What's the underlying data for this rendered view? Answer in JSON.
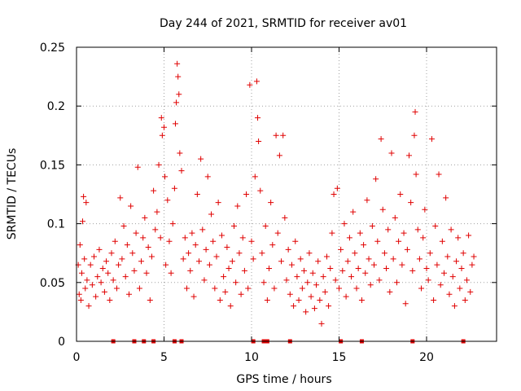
{
  "chart_data": {
    "type": "scatter",
    "title": "Day 244 of 2021, SRMTID for receiver av01",
    "xlabel": "GPS time / hours",
    "ylabel": "SRMTID / TECUs",
    "xlim": [
      0,
      24
    ],
    "ylim": [
      0,
      0.25
    ],
    "xticks": [
      0,
      5,
      10,
      15,
      20
    ],
    "xtick_labels": [
      "0",
      "5",
      "10",
      "15",
      "20"
    ],
    "yticks": [
      0,
      0.05,
      0.1,
      0.15,
      0.2,
      0.25
    ],
    "ytick_labels": [
      "0",
      "0.05",
      "0.1",
      "0.15",
      "0.2",
      "0.25"
    ],
    "grid": true,
    "series_color": "#e00000",
    "marker": "plus",
    "series": [
      {
        "name": "SRMTID",
        "points": [
          [
            0.1,
            0.065
          ],
          [
            0.15,
            0.04
          ],
          [
            0.2,
            0.082
          ],
          [
            0.25,
            0.035
          ],
          [
            0.3,
            0.058
          ],
          [
            0.35,
            0.102
          ],
          [
            0.4,
            0.123
          ],
          [
            0.45,
            0.07
          ],
          [
            0.5,
            0.045
          ],
          [
            0.55,
            0.118
          ],
          [
            0.6,
            0.052
          ],
          [
            0.7,
            0.03
          ],
          [
            0.8,
            0.065
          ],
          [
            0.9,
            0.048
          ],
          [
            1.0,
            0.072
          ],
          [
            1.1,
            0.038
          ],
          [
            1.2,
            0.055
          ],
          [
            1.3,
            0.078
          ],
          [
            1.4,
            0.05
          ],
          [
            1.5,
            0.062
          ],
          [
            1.6,
            0.042
          ],
          [
            1.7,
            0.068
          ],
          [
            1.8,
            0.058
          ],
          [
            1.9,
            0.035
          ],
          [
            2.0,
            0.075
          ],
          [
            2.1,
            0.052
          ],
          [
            2.2,
            0.085
          ],
          [
            2.3,
            0.045
          ],
          [
            2.4,
            0.065
          ],
          [
            2.5,
            0.122
          ],
          [
            2.6,
            0.07
          ],
          [
            2.7,
            0.098
          ],
          [
            2.8,
            0.055
          ],
          [
            2.9,
            0.082
          ],
          [
            3.0,
            0.04
          ],
          [
            3.1,
            0.115
          ],
          [
            3.2,
            0.075
          ],
          [
            3.3,
            0.06
          ],
          [
            3.4,
            0.092
          ],
          [
            3.5,
            0.148
          ],
          [
            3.6,
            0.045
          ],
          [
            3.7,
            0.068
          ],
          [
            3.8,
            0.088
          ],
          [
            3.9,
            0.105
          ],
          [
            4.0,
            0.058
          ],
          [
            4.1,
            0.08
          ],
          [
            4.2,
            0.035
          ],
          [
            4.3,
            0.072
          ],
          [
            4.4,
            0.128
          ],
          [
            4.5,
            0.095
          ],
          [
            4.6,
            0.11
          ],
          [
            4.7,
            0.15
          ],
          [
            4.8,
            0.088
          ],
          [
            4.85,
            0.19
          ],
          [
            4.9,
            0.175
          ],
          [
            5.0,
            0.182
          ],
          [
            5.05,
            0.14
          ],
          [
            5.1,
            0.065
          ],
          [
            5.2,
            0.12
          ],
          [
            5.3,
            0.085
          ],
          [
            5.4,
            0.058
          ],
          [
            5.5,
            0.1
          ],
          [
            5.6,
            0.13
          ],
          [
            5.65,
            0.185
          ],
          [
            5.7,
            0.203
          ],
          [
            5.75,
            0.236
          ],
          [
            5.8,
            0.225
          ],
          [
            5.85,
            0.21
          ],
          [
            5.9,
            0.16
          ],
          [
            6.0,
            0.145
          ],
          [
            6.1,
            0.07
          ],
          [
            6.2,
            0.088
          ],
          [
            6.3,
            0.045
          ],
          [
            6.4,
            0.075
          ],
          [
            6.5,
            0.06
          ],
          [
            6.6,
            0.092
          ],
          [
            6.7,
            0.038
          ],
          [
            6.8,
            0.082
          ],
          [
            6.9,
            0.125
          ],
          [
            7.0,
            0.068
          ],
          [
            7.1,
            0.155
          ],
          [
            7.2,
            0.095
          ],
          [
            7.3,
            0.052
          ],
          [
            7.4,
            0.078
          ],
          [
            7.5,
            0.14
          ],
          [
            7.6,
            0.065
          ],
          [
            7.7,
            0.108
          ],
          [
            7.8,
            0.085
          ],
          [
            7.9,
            0.045
          ],
          [
            8.0,
            0.072
          ],
          [
            8.1,
            0.118
          ],
          [
            8.2,
            0.035
          ],
          [
            8.3,
            0.09
          ],
          [
            8.4,
            0.055
          ],
          [
            8.5,
            0.042
          ],
          [
            8.6,
            0.08
          ],
          [
            8.7,
            0.062
          ],
          [
            8.8,
            0.03
          ],
          [
            8.9,
            0.068
          ],
          [
            9.0,
            0.098
          ],
          [
            9.1,
            0.05
          ],
          [
            9.2,
            0.115
          ],
          [
            9.3,
            0.075
          ],
          [
            9.4,
            0.04
          ],
          [
            9.5,
            0.088
          ],
          [
            9.6,
            0.06
          ],
          [
            9.7,
            0.125
          ],
          [
            9.8,
            0.045
          ],
          [
            9.9,
            0.218
          ],
          [
            10.0,
            0.085
          ],
          [
            10.1,
            0.07
          ],
          [
            10.2,
            0.14
          ],
          [
            10.3,
            0.221
          ],
          [
            10.35,
            0.19
          ],
          [
            10.4,
            0.17
          ],
          [
            10.5,
            0.128
          ],
          [
            10.6,
            0.075
          ],
          [
            10.7,
            0.05
          ],
          [
            10.8,
            0.098
          ],
          [
            10.9,
            0.035
          ],
          [
            11.0,
            0.062
          ],
          [
            11.1,
            0.118
          ],
          [
            11.2,
            0.082
          ],
          [
            11.3,
            0.045
          ],
          [
            11.4,
            0.175
          ],
          [
            11.5,
            0.092
          ],
          [
            11.6,
            0.158
          ],
          [
            11.7,
            0.068
          ],
          [
            11.8,
            0.175
          ],
          [
            11.9,
            0.105
          ],
          [
            12.0,
            0.052
          ],
          [
            12.1,
            0.078
          ],
          [
            12.2,
            0.04
          ],
          [
            12.3,
            0.065
          ],
          [
            12.4,
            0.03
          ],
          [
            12.5,
            0.085
          ],
          [
            12.6,
            0.055
          ],
          [
            12.7,
            0.035
          ],
          [
            12.8,
            0.07
          ],
          [
            12.9,
            0.045
          ],
          [
            13.0,
            0.06
          ],
          [
            13.1,
            0.025
          ],
          [
            13.2,
            0.05
          ],
          [
            13.3,
            0.075
          ],
          [
            13.4,
            0.038
          ],
          [
            13.5,
            0.058
          ],
          [
            13.6,
            0.028
          ],
          [
            13.7,
            0.048
          ],
          [
            13.8,
            0.068
          ],
          [
            13.9,
            0.035
          ],
          [
            14.0,
            0.015
          ],
          [
            14.1,
            0.055
          ],
          [
            14.2,
            0.042
          ],
          [
            14.3,
            0.072
          ],
          [
            14.4,
            0.03
          ],
          [
            14.5,
            0.062
          ],
          [
            14.6,
            0.092
          ],
          [
            14.7,
            0.125
          ],
          [
            14.8,
            0.052
          ],
          [
            14.9,
            0.13
          ],
          [
            15.0,
            0.045
          ],
          [
            15.1,
            0.078
          ],
          [
            15.2,
            0.06
          ],
          [
            15.3,
            0.1
          ],
          [
            15.4,
            0.038
          ],
          [
            15.5,
            0.068
          ],
          [
            15.6,
            0.088
          ],
          [
            15.7,
            0.055
          ],
          [
            15.8,
            0.11
          ],
          [
            15.9,
            0.075
          ],
          [
            16.0,
            0.045
          ],
          [
            16.1,
            0.062
          ],
          [
            16.2,
            0.092
          ],
          [
            16.3,
            0.035
          ],
          [
            16.4,
            0.082
          ],
          [
            16.5,
            0.058
          ],
          [
            16.6,
            0.12
          ],
          [
            16.7,
            0.07
          ],
          [
            16.8,
            0.048
          ],
          [
            16.9,
            0.098
          ],
          [
            17.0,
            0.065
          ],
          [
            17.1,
            0.138
          ],
          [
            17.2,
            0.085
          ],
          [
            17.3,
            0.052
          ],
          [
            17.4,
            0.172
          ],
          [
            17.5,
            0.112
          ],
          [
            17.6,
            0.075
          ],
          [
            17.7,
            0.062
          ],
          [
            17.8,
            0.095
          ],
          [
            17.9,
            0.042
          ],
          [
            18.0,
            0.16
          ],
          [
            18.1,
            0.07
          ],
          [
            18.2,
            0.105
          ],
          [
            18.3,
            0.05
          ],
          [
            18.4,
            0.085
          ],
          [
            18.5,
            0.125
          ],
          [
            18.6,
            0.065
          ],
          [
            18.7,
            0.092
          ],
          [
            18.8,
            0.032
          ],
          [
            18.9,
            0.078
          ],
          [
            19.0,
            0.158
          ],
          [
            19.1,
            0.118
          ],
          [
            19.2,
            0.06
          ],
          [
            19.3,
            0.175
          ],
          [
            19.35,
            0.195
          ],
          [
            19.4,
            0.142
          ],
          [
            19.5,
            0.095
          ],
          [
            19.6,
            0.07
          ],
          [
            19.7,
            0.045
          ],
          [
            19.8,
            0.088
          ],
          [
            19.9,
            0.112
          ],
          [
            20.0,
            0.062
          ],
          [
            20.1,
            0.052
          ],
          [
            20.2,
            0.075
          ],
          [
            20.3,
            0.172
          ],
          [
            20.4,
            0.035
          ],
          [
            20.5,
            0.098
          ],
          [
            20.6,
            0.065
          ],
          [
            20.7,
            0.142
          ],
          [
            20.8,
            0.048
          ],
          [
            20.9,
            0.085
          ],
          [
            21.0,
            0.058
          ],
          [
            21.1,
            0.122
          ],
          [
            21.2,
            0.072
          ],
          [
            21.3,
            0.04
          ],
          [
            21.4,
            0.095
          ],
          [
            21.5,
            0.055
          ],
          [
            21.6,
            0.03
          ],
          [
            21.7,
            0.068
          ],
          [
            21.8,
            0.088
          ],
          [
            21.9,
            0.045
          ],
          [
            22.0,
            0.062
          ],
          [
            22.1,
            0.075
          ],
          [
            22.2,
            0.035
          ],
          [
            22.3,
            0.052
          ],
          [
            22.4,
            0.09
          ],
          [
            22.5,
            0.042
          ],
          [
            22.6,
            0.065
          ],
          [
            22.7,
            0.072
          ]
        ]
      },
      {
        "name": "zero-markers",
        "marker": "square",
        "points": [
          [
            2.1,
            0
          ],
          [
            3.3,
            0
          ],
          [
            3.85,
            0
          ],
          [
            4.4,
            0
          ],
          [
            5.6,
            0
          ],
          [
            6.0,
            0
          ],
          [
            10.1,
            0
          ],
          [
            10.7,
            0
          ],
          [
            10.9,
            0
          ],
          [
            12.2,
            0
          ],
          [
            15.1,
            0
          ],
          [
            16.3,
            0
          ],
          [
            19.2,
            0
          ],
          [
            22.1,
            0
          ]
        ]
      }
    ]
  }
}
